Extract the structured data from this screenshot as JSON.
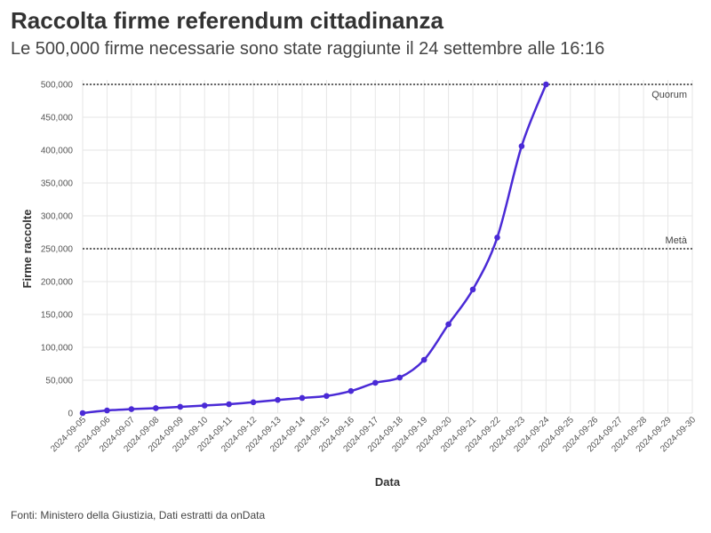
{
  "title": "Raccolta firme referendum cittadinanza",
  "subtitle": "Le 500,000 firme necessarie sono state raggiunte il 24 settembre alle 16:16",
  "source": "Fonti: Ministero della Giustizia, Dati estratti da onData",
  "colors": {
    "line": "#4a2ad6",
    "grid": "#e6e6e6",
    "reference": "#333333"
  },
  "chart_data": {
    "type": "line",
    "xlabel": "Data",
    "ylabel": "Firme raccolte",
    "ylim": [
      0,
      500000
    ],
    "yticks": [
      0,
      50000,
      100000,
      150000,
      200000,
      250000,
      300000,
      350000,
      400000,
      450000,
      500000
    ],
    "ytick_labels": [
      "0",
      "50,000",
      "100,000",
      "150,000",
      "200,000",
      "250,000",
      "300,000",
      "350,000",
      "400,000",
      "450,000",
      "500,000"
    ],
    "x_ticks": [
      "2024-09-05",
      "2024-09-06",
      "2024-09-07",
      "2024-09-08",
      "2024-09-09",
      "2024-09-10",
      "2024-09-11",
      "2024-09-12",
      "2024-09-13",
      "2024-09-14",
      "2024-09-15",
      "2024-09-16",
      "2024-09-17",
      "2024-09-18",
      "2024-09-19",
      "2024-09-20",
      "2024-09-21",
      "2024-09-22",
      "2024-09-23",
      "2024-09-24",
      "2024-09-25",
      "2024-09-26",
      "2024-09-27",
      "2024-09-28",
      "2024-09-29",
      "2024-09-30"
    ],
    "x": [
      "2024-09-05",
      "2024-09-06",
      "2024-09-07",
      "2024-09-08",
      "2024-09-09",
      "2024-09-10",
      "2024-09-11",
      "2024-09-12",
      "2024-09-13",
      "2024-09-14",
      "2024-09-15",
      "2024-09-16",
      "2024-09-17",
      "2024-09-18",
      "2024-09-19",
      "2024-09-20",
      "2024-09-21",
      "2024-09-22",
      "2024-09-23",
      "2024-09-24"
    ],
    "series": [
      {
        "name": "Firme raccolte",
        "values": [
          0,
          4000,
          6000,
          7500,
          9500,
          11500,
          13500,
          16500,
          20000,
          23000,
          26000,
          33500,
          46000,
          54000,
          81000,
          135000,
          188000,
          267000,
          406000,
          500000
        ]
      }
    ],
    "reference_lines": [
      {
        "label": "Quorum",
        "value": 500000
      },
      {
        "label": "Metà",
        "value": 250000
      }
    ]
  }
}
